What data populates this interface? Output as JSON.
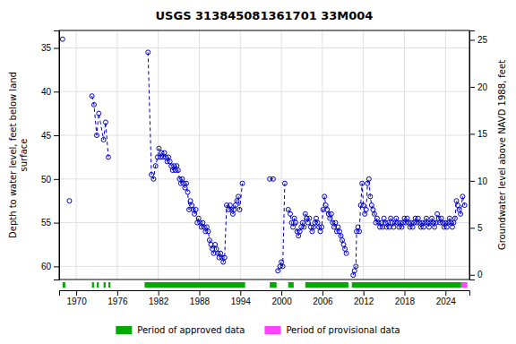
{
  "chart_data": {
    "type": "line",
    "title": "USGS 313845081361701 33M004",
    "ylabel": "Depth to water level, feet below land\n surface",
    "y2label": "Groundwater level above NAVD 1988, feet",
    "xlim": [
      1967.5,
      2027.5
    ],
    "xticks": [
      1970,
      1976,
      1982,
      1988,
      1994,
      2000,
      2006,
      2012,
      2018,
      2024
    ],
    "ylim": [
      61.5,
      33.0
    ],
    "yticks": [
      35,
      40,
      45,
      50,
      55,
      60
    ],
    "y2lim": [
      -0.5,
      26
    ],
    "y2ticks": [
      0,
      5,
      10,
      15,
      20,
      25
    ],
    "grid": true,
    "periods": [
      {
        "name": "Period of approved data",
        "color": "#00aa00",
        "ranges": [
          [
            1968.0,
            1968.4
          ],
          [
            1972.3,
            1972.6
          ],
          [
            1973.0,
            1973.3
          ],
          [
            1974.0,
            1974.3
          ],
          [
            1974.7,
            1975.0
          ],
          [
            1980.0,
            1994.7
          ],
          [
            1998.3,
            1999.3
          ],
          [
            2001.0,
            2001.8
          ],
          [
            2003.5,
            2009.8
          ],
          [
            2010.3,
            2026.3
          ]
        ]
      },
      {
        "name": "Period of provisional data",
        "color": "#ff44ff",
        "ranges": [
          [
            2026.3,
            2027.2
          ]
        ]
      }
    ],
    "series": [
      {
        "x": [
          1968.0
        ],
        "values": [
          34.0
        ],
        "color": "#0000cc",
        "marker": "circle",
        "line_style": "none"
      },
      {
        "x": [
          1969.0
        ],
        "values": [
          52.5
        ],
        "color": "#0000cc",
        "marker": "circle",
        "line_style": "none"
      },
      {
        "x": [
          1972.3,
          1972.6,
          1973.0,
          1973.3,
          1974.0,
          1974.3,
          1974.7
        ],
        "values": [
          40.5,
          41.5,
          45.0,
          42.5,
          45.5,
          43.5,
          47.5
        ],
        "color": "#0000cc",
        "marker": "circle",
        "line_style": "dashed"
      },
      {
        "x": [
          1980.5,
          1981.0,
          1981.3,
          1981.6,
          1981.9,
          1982.1,
          1982.3,
          1982.5,
          1982.7,
          1982.9,
          1983.1,
          1983.3,
          1983.5,
          1983.7,
          1983.9,
          1984.1,
          1984.3,
          1984.5,
          1984.7,
          1984.9,
          1985.1,
          1985.3,
          1985.5,
          1985.7,
          1985.9,
          1986.1,
          1986.3,
          1986.5,
          1986.7,
          1986.9,
          1987.1,
          1987.3,
          1987.5,
          1987.7,
          1987.9,
          1988.1,
          1988.3,
          1988.5,
          1988.7,
          1988.9,
          1989.1,
          1989.3,
          1989.5,
          1989.7,
          1989.9,
          1990.1,
          1990.3,
          1990.5,
          1990.7,
          1990.9,
          1991.1,
          1991.3,
          1991.5,
          1991.7,
          1992.0,
          1992.3,
          1992.5,
          1992.7,
          1992.9,
          1993.1,
          1993.3,
          1993.5,
          1993.7,
          1993.9,
          1994.3
        ],
        "values": [
          35.5,
          49.5,
          50.0,
          48.5,
          47.5,
          46.5,
          47.5,
          47.0,
          47.5,
          47.0,
          47.5,
          48.0,
          47.5,
          48.0,
          48.5,
          49.0,
          48.5,
          49.0,
          48.5,
          49.0,
          50.0,
          50.5,
          50.0,
          50.5,
          51.0,
          50.5,
          51.5,
          53.5,
          52.5,
          53.0,
          53.5,
          54.0,
          53.5,
          55.0,
          54.5,
          55.0,
          55.5,
          55.0,
          55.5,
          56.0,
          55.5,
          56.0,
          57.0,
          57.5,
          58.0,
          58.5,
          57.5,
          58.0,
          58.5,
          59.0,
          58.5,
          59.0,
          59.5,
          59.0,
          53.0,
          53.5,
          53.0,
          53.5,
          54.0,
          53.5,
          53.0,
          52.5,
          52.0,
          53.5,
          50.5
        ],
        "color": "#0000cc",
        "marker": "circle",
        "line_style": "dashed"
      },
      {
        "x": [
          1998.3,
          1998.8
        ],
        "values": [
          50.0,
          50.0
        ],
        "color": "#0000cc",
        "marker": "circle",
        "line_style": "dashed"
      },
      {
        "x": [
          1999.5,
          1999.8,
          2000.0,
          2000.2,
          2000.5
        ],
        "values": [
          60.5,
          60.0,
          59.5,
          60.0,
          50.5
        ],
        "color": "#0000cc",
        "marker": "circle",
        "line_style": "dashed"
      },
      {
        "x": [
          2001.0,
          2001.3,
          2001.5,
          2001.7,
          2001.9,
          2002.1,
          2002.3,
          2002.5,
          2002.7,
          2002.9,
          2003.1,
          2003.3,
          2003.5,
          2003.7,
          2003.9,
          2004.1,
          2004.3,
          2004.5,
          2004.7,
          2004.9,
          2005.1,
          2005.3,
          2005.5,
          2005.7,
          2005.9,
          2006.1,
          2006.3,
          2006.5,
          2006.7,
          2006.9,
          2007.1,
          2007.3,
          2007.5,
          2007.7,
          2007.9,
          2008.1,
          2008.3,
          2008.5,
          2008.7,
          2008.9,
          2009.1,
          2009.3,
          2009.5
        ],
        "values": [
          53.5,
          54.0,
          55.0,
          55.5,
          54.5,
          55.0,
          56.0,
          56.5,
          56.0,
          55.5,
          55.0,
          55.5,
          54.0,
          54.5,
          55.0,
          54.5,
          55.5,
          56.0,
          55.5,
          55.0,
          54.5,
          55.0,
          55.5,
          56.0,
          55.5,
          53.5,
          52.0,
          53.0,
          53.5,
          54.0,
          54.5,
          54.0,
          55.0,
          55.5,
          55.0,
          56.0,
          55.5,
          56.0,
          56.5,
          57.0,
          57.5,
          58.0,
          58.5
        ],
        "color": "#0000cc",
        "marker": "circle",
        "line_style": "dashed"
      },
      {
        "x": [
          2010.5,
          2010.7,
          2010.9,
          2011.0,
          2011.2,
          2011.4,
          2011.6,
          2011.8,
          2012.0,
          2012.2,
          2012.4,
          2012.6,
          2012.8,
          2013.0,
          2013.2,
          2013.4,
          2013.6,
          2013.8,
          2014.0,
          2014.2,
          2014.4,
          2014.6,
          2014.8,
          2015.0,
          2015.2,
          2015.4,
          2015.6,
          2015.8,
          2016.0,
          2016.2,
          2016.4,
          2016.6,
          2016.8,
          2017.0,
          2017.2,
          2017.4,
          2017.6,
          2017.8,
          2018.0,
          2018.2,
          2018.4,
          2018.6,
          2018.8,
          2019.0,
          2019.2,
          2019.4,
          2019.6,
          2019.8,
          2020.0,
          2020.2,
          2020.4,
          2020.6,
          2020.8,
          2021.0,
          2021.2,
          2021.4,
          2021.6,
          2021.8,
          2022.0,
          2022.2,
          2022.4,
          2022.6,
          2022.8,
          2023.0,
          2023.2,
          2023.4,
          2023.6,
          2023.8,
          2024.0,
          2024.2,
          2024.4,
          2024.6,
          2024.8,
          2025.0,
          2025.2,
          2025.4,
          2025.6,
          2025.8,
          2026.0,
          2026.2,
          2026.5,
          2026.8
        ],
        "values": [
          61.0,
          60.5,
          60.0,
          56.0,
          55.5,
          56.0,
          53.0,
          50.5,
          53.0,
          54.0,
          53.5,
          50.5,
          50.0,
          52.0,
          53.0,
          53.5,
          54.0,
          55.0,
          54.5,
          55.0,
          55.5,
          55.0,
          55.5,
          54.5,
          55.0,
          55.5,
          55.0,
          55.5,
          54.5,
          55.0,
          55.5,
          55.0,
          54.5,
          55.0,
          55.5,
          55.0,
          55.5,
          55.0,
          54.5,
          55.0,
          54.5,
          55.0,
          55.5,
          55.0,
          55.5,
          55.0,
          54.5,
          55.0,
          54.5,
          55.0,
          55.5,
          55.0,
          55.5,
          55.0,
          54.5,
          55.0,
          55.5,
          55.0,
          54.5,
          55.0,
          55.5,
          55.0,
          54.0,
          54.5,
          55.0,
          54.5,
          55.0,
          55.5,
          55.0,
          55.5,
          55.0,
          54.5,
          55.0,
          55.5,
          55.0,
          54.5,
          52.5,
          53.0,
          53.5,
          54.0,
          52.0,
          53.0
        ],
        "color": "#0000cc",
        "marker": "circle",
        "line_style": "dashed"
      }
    ]
  }
}
